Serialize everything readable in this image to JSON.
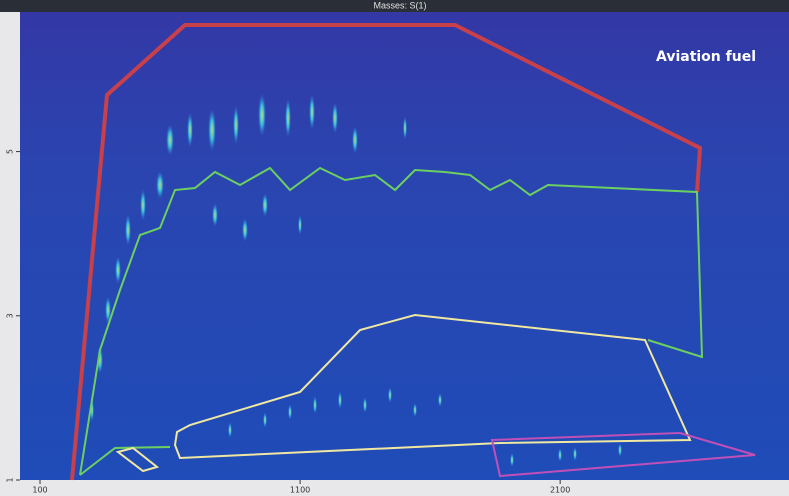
{
  "chart_data": {
    "type": "contour",
    "title": "Masses: S(1)",
    "annotation": "Aviation fuel",
    "xlim": [
      23,
      2980
    ],
    "xticks": [
      100,
      1100,
      2100
    ],
    "ylim": [
      1,
      6.7
    ],
    "yticks": [
      1,
      3,
      5
    ]
  }
}
